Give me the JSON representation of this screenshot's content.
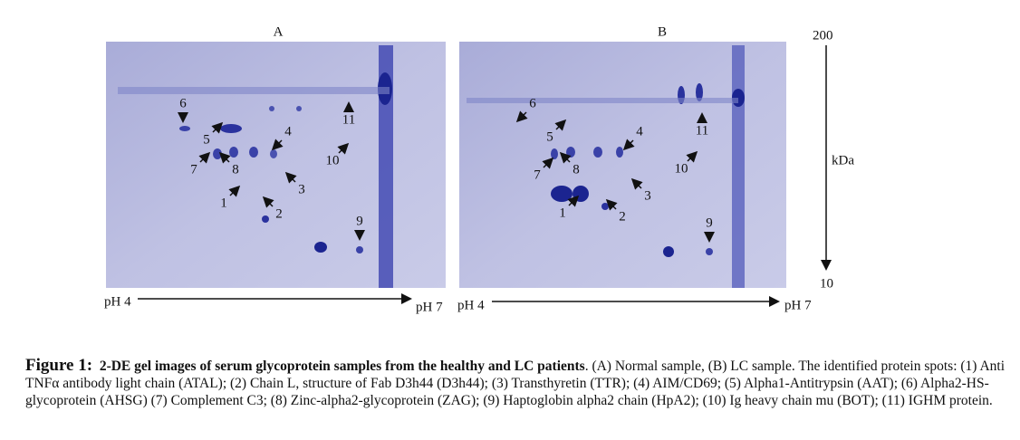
{
  "panels": [
    {
      "title": "A",
      "spot_labels": [
        "1",
        "2",
        "3",
        "4",
        "5",
        "6",
        "7",
        "8",
        "9",
        "10",
        "11"
      ],
      "ph_start": "pH 4",
      "ph_end": "pH 7"
    },
    {
      "title": "B",
      "spot_labels": [
        "1",
        "2",
        "3",
        "4",
        "5",
        "6",
        "7",
        "8",
        "9",
        "10",
        "11"
      ],
      "ph_start": "pH 4",
      "ph_end": "pH 7"
    }
  ],
  "mass_axis": {
    "top": "200",
    "unit": "kDa",
    "bottom": "10"
  },
  "caption": {
    "label": "Figure 1:",
    "title": "2-DE gel images of serum glycoprotein samples from the healthy and LC patients",
    "text": ". (A) Normal sample, (B) LC sample. The identified protein spots: (1) Anti TNFα antibody light chain (ATAL); (2) Chain L, structure of Fab D3h44 (D3h44); (3) Transthyretin (TTR); (4) AIM/CD69; (5) Alpha1-Antitrypsin (AAT); (6) Alpha2-HS-glycoprotein (AHSG) (7) Complement C3; (8) Zinc-alpha2-glycoprotein (ZAG); (9) Haptoglobin alpha2 chain (HpA2); (10) Ig heavy chain mu (BOT); (11) IGHM protein."
  }
}
